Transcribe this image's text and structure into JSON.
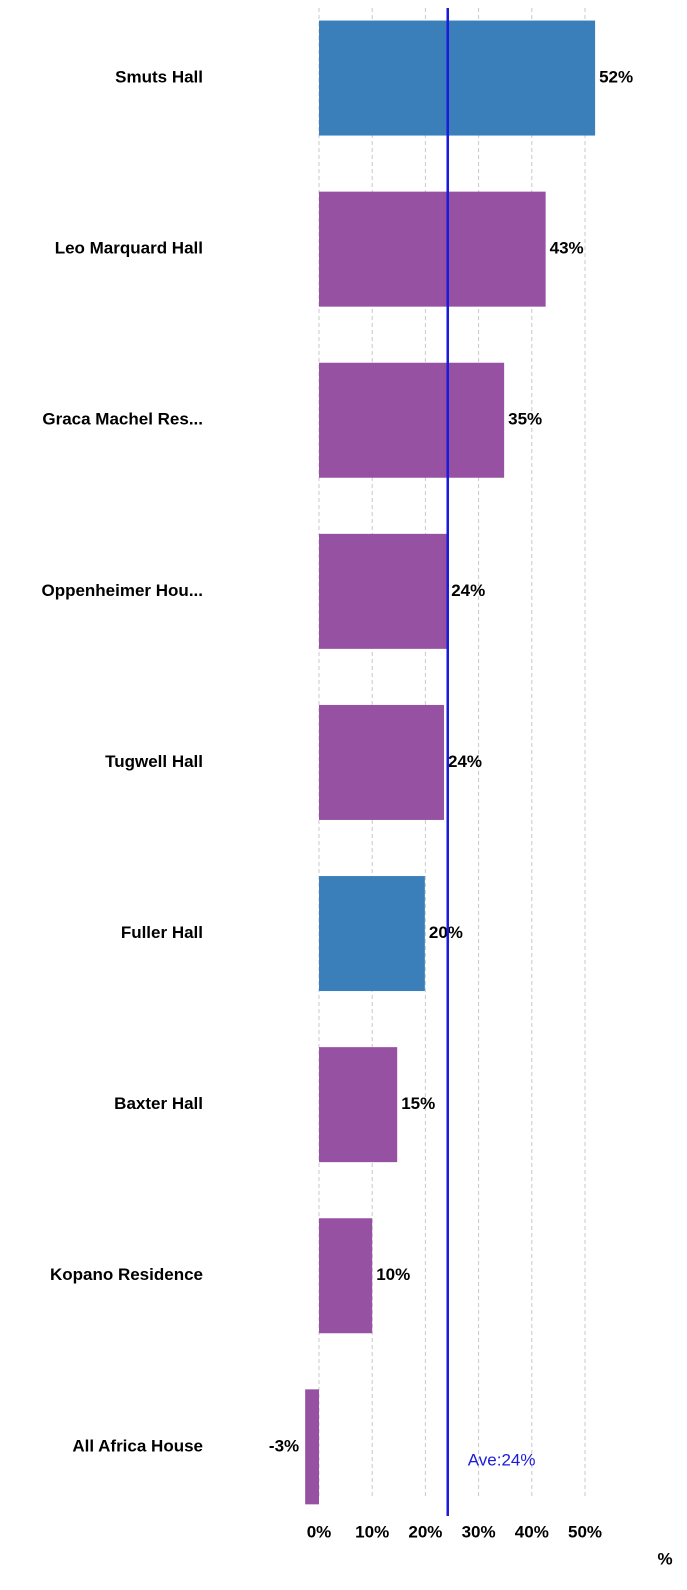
{
  "chart_data": {
    "type": "bar",
    "orientation": "horizontal",
    "categories": [
      "Smuts Hall",
      "Leo Marquard Hall",
      "Graca Machel Res...",
      "Oppenheimer Hou...",
      "Tugwell Hall",
      "Fuller Hall",
      "Baxter Hall",
      "Kopano Residence",
      "All Africa House"
    ],
    "values": [
      51.9,
      42.6,
      34.8,
      24.1,
      23.5,
      19.9,
      14.7,
      10,
      -2.6
    ],
    "value_labels": [
      "52%",
      "43%",
      "35%",
      "24%",
      "24%",
      "20%",
      "15%",
      "10%",
      "-3%"
    ],
    "colors": [
      "#3a7fba",
      "#9651a3",
      "#9651a3",
      "#9651a3",
      "#9651a3",
      "#3a7fba",
      "#9651a3",
      "#9651a3",
      "#9651a3"
    ],
    "xlim": [
      -5,
      55
    ],
    "xticks": [
      {
        "value": 0,
        "label": "0%"
      },
      {
        "value": 10,
        "label": "10%"
      },
      {
        "value": 20,
        "label": "20%"
      },
      {
        "value": 30,
        "label": "30%"
      },
      {
        "value": 40,
        "label": "40%"
      },
      {
        "value": 50,
        "label": "50%"
      }
    ],
    "xlabel": "%",
    "grid": true,
    "average": {
      "value": 24.2,
      "label": "Ave:24%",
      "color": "#1a1adb"
    }
  }
}
